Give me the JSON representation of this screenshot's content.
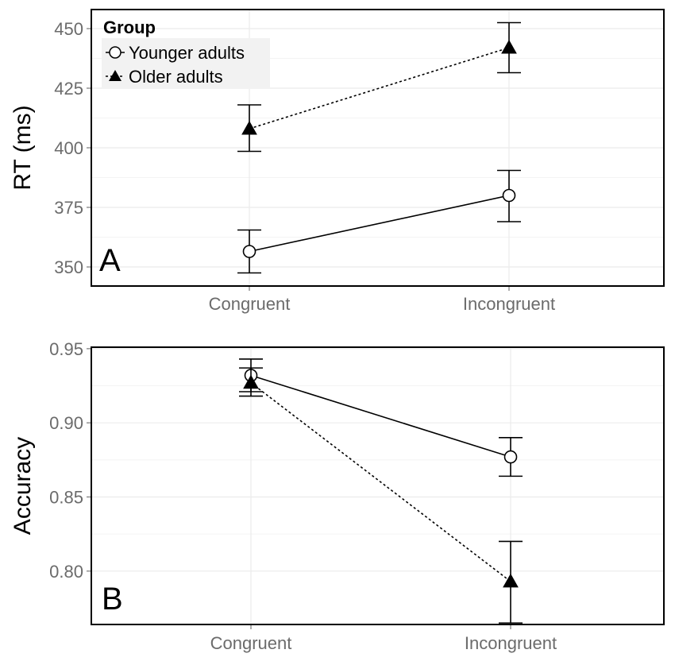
{
  "chart_data": [
    {
      "type": "line",
      "panel": "A",
      "ylabel": "RT (ms)",
      "xlabel": "",
      "categories": [
        "Congruent",
        "Incongruent"
      ],
      "ylim": [
        342,
        458
      ],
      "yticks": [
        350,
        375,
        400,
        425,
        450
      ],
      "ytick_labels": [
        "350",
        "375",
        "400",
        "425",
        "450"
      ],
      "series": [
        {
          "name": "Younger adults",
          "marker": "open-circle",
          "linestyle": "solid",
          "values": [
            356.5,
            380
          ],
          "err_low": [
            347.5,
            369
          ],
          "err_high": [
            365.5,
            390.5
          ]
        },
        {
          "name": "Older adults",
          "marker": "filled-triangle",
          "linestyle": "dotted",
          "values": [
            408,
            442
          ],
          "err_low": [
            398.5,
            431.5
          ],
          "err_high": [
            418,
            452.5
          ]
        }
      ],
      "legend": {
        "title": "Group",
        "position": "top-left",
        "entries": [
          "Younger adults",
          "Older adults"
        ]
      }
    },
    {
      "type": "line",
      "panel": "B",
      "ylabel": "Accuracy",
      "xlabel": "",
      "categories": [
        "Congruent",
        "Incongruent"
      ],
      "ylim": [
        0.764,
        0.951
      ],
      "yticks": [
        0.8,
        0.85,
        0.9,
        0.95
      ],
      "ytick_labels": [
        "0.80",
        "0.85",
        "0.90",
        "0.95"
      ],
      "series": [
        {
          "name": "Younger adults",
          "marker": "open-circle",
          "linestyle": "solid",
          "values": [
            0.932,
            0.877
          ],
          "err_low": [
            0.921,
            0.864
          ],
          "err_high": [
            0.943,
            0.89
          ]
        },
        {
          "name": "Older adults",
          "marker": "filled-triangle",
          "linestyle": "dotted",
          "values": [
            0.927,
            0.793
          ],
          "err_low": [
            0.918,
            0.765
          ],
          "err_high": [
            0.937,
            0.82
          ]
        }
      ]
    }
  ]
}
